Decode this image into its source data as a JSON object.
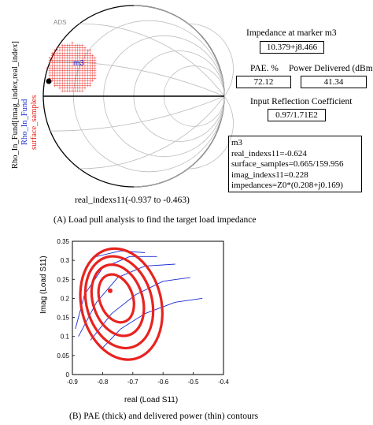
{
  "top": {
    "ads_tag": "ADS",
    "y_label_1": "Rho_In_Fund[imag_index,real_index]",
    "y_label_2": "Rho_In_Fund",
    "y_label_3": "surface_samples",
    "marker_label": "m3",
    "x_label": "real_indexs11(-0.937 to -0.463)",
    "impedance_title": "Impedance at marker m3",
    "impedance_value": "10.379+j8.466",
    "pae_title": "PAE. %",
    "pae_value": "72.12",
    "power_title": "Power Delivered (dBm)",
    "power_value": "41.34",
    "refl_title": "Input Reflection Coefficient",
    "refl_value": "0.97/1.71E2",
    "marker_box": {
      "name": "m3",
      "line1": "real_indexs11=-0.624",
      "line2": "surface_samples=0.665/159.956",
      "line3": "imag_indexs11=0.228",
      "line4": "impedances=Z0*(0.208+j0.169)"
    },
    "caption": "(A) Load pull analysis to find the target load impedance",
    "colors": {
      "samples": "#e8231f",
      "rho": "#1a2bd6",
      "smith": "#bdbdbd"
    }
  },
  "bottom": {
    "xlabel": "real (Load S11)",
    "ylabel": "Imag (Load S11)",
    "caption": "(B) PAE (thick) and delivered power (thin) contours",
    "chart_data": {
      "type": "line",
      "xlim": [
        -0.9,
        -0.4
      ],
      "ylim": [
        0.0,
        0.35
      ],
      "x_ticks": [
        "-0.9",
        "-0.8",
        "-0.7",
        "-0.6",
        "-0.5",
        "-0.4"
      ],
      "y_ticks": [
        "0.35",
        "0.3",
        "0.25",
        "0.2",
        "0.15",
        "0.1",
        "0.05",
        "0"
      ],
      "optimum_point": {
        "x": -0.775,
        "y": 0.22
      },
      "pae_contours": [
        {
          "cx": -0.755,
          "cy": 0.2,
          "rx": 0.055,
          "ry": 0.065,
          "rot": 20
        },
        {
          "cx": -0.75,
          "cy": 0.195,
          "rx": 0.082,
          "ry": 0.096,
          "rot": 18
        },
        {
          "cx": -0.745,
          "cy": 0.19,
          "rx": 0.108,
          "ry": 0.123,
          "rot": 16
        },
        {
          "cx": -0.738,
          "cy": 0.185,
          "rx": 0.132,
          "ry": 0.148,
          "rot": 14
        }
      ],
      "power_contours": [
        [
          [
            -0.8,
            0.07
          ],
          [
            -0.74,
            0.12
          ],
          [
            -0.66,
            0.16
          ],
          [
            -0.56,
            0.19
          ],
          [
            -0.47,
            0.2
          ]
        ],
        [
          [
            -0.84,
            0.09
          ],
          [
            -0.77,
            0.16
          ],
          [
            -0.69,
            0.21
          ],
          [
            -0.6,
            0.245
          ],
          [
            -0.51,
            0.255
          ]
        ],
        [
          [
            -0.88,
            0.1
          ],
          [
            -0.82,
            0.19
          ],
          [
            -0.75,
            0.255
          ],
          [
            -0.66,
            0.285
          ],
          [
            -0.56,
            0.29
          ]
        ],
        [
          [
            -0.89,
            0.12
          ],
          [
            -0.86,
            0.21
          ],
          [
            -0.8,
            0.28
          ],
          [
            -0.71,
            0.31
          ],
          [
            -0.62,
            0.31
          ]
        ],
        [
          [
            -0.82,
            0.31
          ],
          [
            -0.74,
            0.325
          ],
          [
            -0.66,
            0.32
          ]
        ]
      ],
      "pae_color": "#e8231f",
      "power_color": "#1a2bd6"
    }
  }
}
